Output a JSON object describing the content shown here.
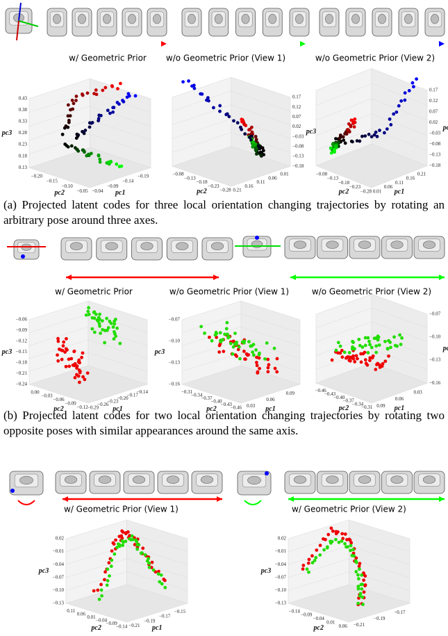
{
  "section_a": {
    "trajectory_labels": [
      "w/ Geometric Prior",
      "w/o Geometric Prior (View 1)",
      "w/o Geometric Prior (View 2)"
    ],
    "plots": [
      {
        "pc3_label": "pc3",
        "pc2_label": "pc2",
        "pc1_label": "pc1",
        "pc3_ticks": [
          "0.43",
          "0.38",
          "0.33",
          "0.28",
          "0.23",
          "0.18",
          "0.13"
        ],
        "pc2_ticks": [
          "−0.20",
          "−0.15",
          "−0.10",
          "−0.05"
        ],
        "pc1_ticks": [
          "−0.04",
          "−0.09",
          "−0.14",
          "−0.19"
        ]
      },
      {
        "pc3_label": "pc3",
        "pc2_label": "pc2",
        "pc3_ticks": [
          "0.17",
          "0.12",
          "0.07",
          "0.02",
          "−0.03",
          "−0.08",
          "−0.13",
          "−0.18"
        ],
        "pc1_ticks": [
          "0.21",
          "0.16",
          "0.11",
          "0.06",
          "0.01"
        ],
        "pc2_ticks": [
          "−0.08",
          "−0.13",
          "−0.18",
          "−0.23",
          "−0.28"
        ]
      },
      {
        "pc3_label": "pc3",
        "pc2_label": "pc2",
        "pc1_label": "pc1",
        "pc3_ticks": [
          "0.17",
          "0.12",
          "0.07",
          "0.02",
          "−0.03",
          "−0.08",
          "−0.13",
          "−0.18"
        ],
        "pc1_ticks": [
          "0.01",
          "0.06",
          "0.11",
          "0.16",
          "0.21"
        ],
        "pc2_ticks": [
          "−0.08",
          "−0.13",
          "−0.18",
          "−0.23",
          "−0.28"
        ]
      }
    ],
    "caption": "(a) Projected latent codes for three local orientation changing trajectories by rotating an arbitrary pose around three axes."
  },
  "section_b": {
    "trajectory_labels": [
      "w/ Geometric Prior",
      "w/o Geometric Prior (View 1)",
      "w/o Geometric Prior (View 2)"
    ],
    "plots": [
      {
        "pc3_label": "pc3",
        "pc2_label": "pc2",
        "pc1_label": "pc1",
        "pc3_ticks": [
          "−0.06",
          "−0.09",
          "−0.12",
          "−0.15",
          "−0.18",
          "−0.21",
          "−0.24"
        ],
        "pc2_ticks": [
          "0.00",
          "−0.03",
          "−0.06",
          "−0.09",
          "−0.12"
        ],
        "pc1_ticks": [
          "−0.29",
          "−0.26",
          "−0.23",
          "−0.20",
          "−0.17",
          "−0.14"
        ]
      },
      {
        "pc3_label": "pc3",
        "pc2_label": "pc2",
        "pc1_label": "pc1",
        "pc3_ticks": [
          "−0.07",
          "−0.10",
          "−0.13",
          "−0.16"
        ],
        "pc2_ticks": [
          "−0.31",
          "−0.34",
          "−0.37",
          "−0.40",
          "−0.43",
          "−0.46"
        ],
        "pc1_ticks": [
          "0.03",
          "0.06",
          "0.09"
        ]
      },
      {
        "pc3_label": "pc3",
        "pc2_label": "pc2",
        "pc1_label": "pc1",
        "pc3_ticks": [
          "−0.07",
          "−0.10",
          "−0.13",
          "−0.16"
        ],
        "pc1_ticks": [
          "0.09",
          "0.06",
          "0.03"
        ],
        "pc2_ticks": [
          "−0.46",
          "−0.43",
          "−0.40",
          "−0.37",
          "−0.34",
          "−0.31"
        ]
      }
    ],
    "caption": "(b) Projected latent codes for two local orientation changing trajectories by rotating two opposite poses with similar appearances around the same axis."
  },
  "section_c": {
    "trajectory_labels": [
      "w/ Geometric Prior (View 1)",
      "w/ Geometric Prior (View 2)"
    ],
    "plots": [
      {
        "pc3_label": "pc3",
        "pc2_label": "pc2",
        "pc1_label": "pc1",
        "pc3_ticks": [
          "0.02",
          "−0.01",
          "−0.04",
          "−0.07",
          "−0.10",
          "−0.13"
        ],
        "pc2_ticks": [
          "0.11",
          "0.06",
          "0.01",
          "−0.04",
          "−0.09",
          "−0.14"
        ],
        "pc1_ticks": [
          "−0.21",
          "−0.19",
          "−0.17",
          "−0.15"
        ]
      },
      {
        "pc3_label": "pc3",
        "pc2_label": "pc2",
        "pc3_ticks": [
          "0.02",
          "−0.01",
          "−0.04",
          "−0.07",
          "−0.10",
          "−0.13"
        ],
        "pc2_ticks": [
          "−0.14",
          "−0.09",
          "−0.04",
          "0.01",
          "0.06"
        ],
        "pc1_ticks": [
          "−0.21",
          "−0.19",
          "−0.17"
        ]
      }
    ]
  }
}
